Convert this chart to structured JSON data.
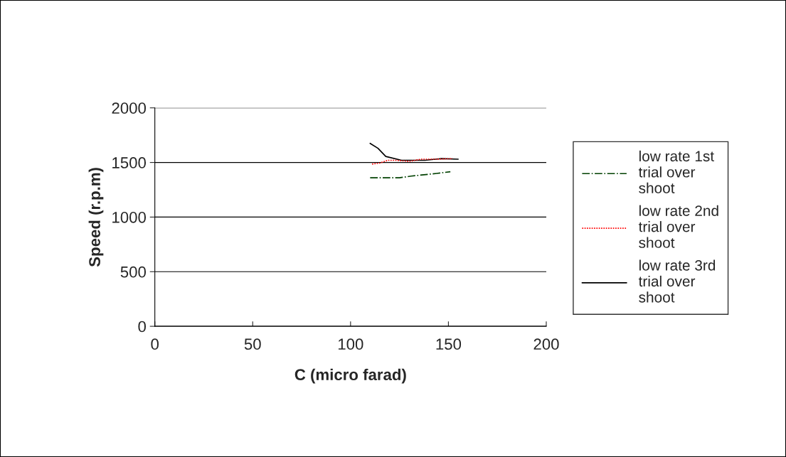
{
  "chart_data": {
    "type": "line",
    "xlabel": "C (micro farad)",
    "ylabel": "Speed (r.p.m)",
    "xlim": [
      0,
      200
    ],
    "xticks": [
      0,
      50,
      100,
      150,
      200
    ],
    "ylim": [
      0,
      2000
    ],
    "yticks": [
      0,
      500,
      1000,
      1500,
      2000
    ],
    "grid": "y",
    "legend": "right",
    "marker": "none",
    "series": [
      {
        "name": "low rate 1st trial over shoot",
        "color": "#004000",
        "line_style": "dashdot",
        "x": [
          110,
          125,
          131,
          144,
          151
        ],
        "values": [
          1360,
          1360,
          1375,
          1400,
          1415
        ]
      },
      {
        "name": "low rate 2nd trial over shoot",
        "color": "#ff0000",
        "line_style": "dotted",
        "x": [
          111,
          115,
          119,
          123,
          130,
          136,
          144,
          152
        ],
        "values": [
          1485,
          1495,
          1520,
          1520,
          1510,
          1530,
          1530,
          1535
        ]
      },
      {
        "name": "low rate 3rd trial over shoot",
        "color": "#000000",
        "line_style": "solid",
        "x": [
          110,
          114,
          118,
          126,
          138,
          146,
          155
        ],
        "values": [
          1675,
          1630,
          1555,
          1520,
          1520,
          1535,
          1530
        ]
      }
    ]
  }
}
